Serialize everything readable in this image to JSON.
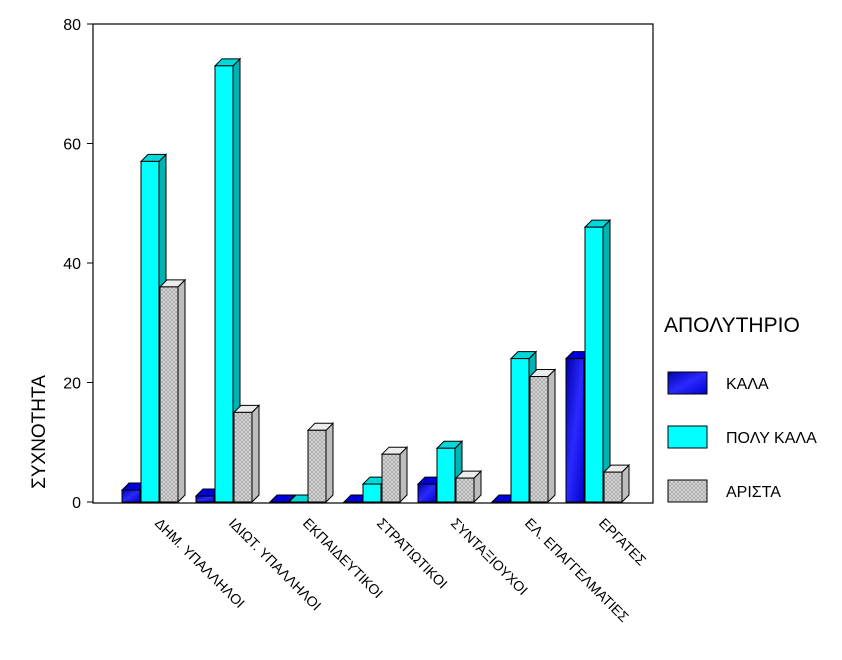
{
  "chart_data": {
    "type": "bar",
    "title": "",
    "xlabel": "",
    "ylabel": "ΣΥΧΝΟΤΗΤΑ",
    "ylim": [
      0,
      80
    ],
    "yticks": [
      0,
      20,
      40,
      60,
      80
    ],
    "grid": false,
    "three_d": true,
    "legend": {
      "title": "ΑΠΟΛΥΤΗΡΙΟ",
      "position": "right"
    },
    "categories": [
      "ΔΗΜ. ΥΠΑΛΛΗΛΟΙ",
      "ΙΔΙΩΤ. ΥΠΑΛΛΗΛΟΙ",
      "ΕΚΠΑΙΔΕΥΤΙΚΟΙ",
      "ΣΤΡΑΤΙΩΤΙΚΟΙ",
      "ΣΥΝΤΑΞΙΟΥΧΟΙ",
      "ΕΛ. ΕΠΑΓΓΕΛΜΑΤΙΕΣ",
      "ΕΡΓΑΤΕΣ"
    ],
    "series": [
      {
        "name": "ΚΑΛΑ",
        "values": [
          2,
          1,
          0,
          0,
          3,
          0,
          24
        ],
        "color": "#0000ff",
        "pattern": "solid"
      },
      {
        "name": "ΠΟΛΥ ΚΑΛΑ",
        "values": [
          57,
          73,
          0,
          3,
          9,
          24,
          46
        ],
        "color": "#00ffff",
        "pattern": "solid"
      },
      {
        "name": "ΑΡΙΣΤΑ",
        "values": [
          36,
          15,
          12,
          8,
          4,
          21,
          5
        ],
        "color": "#c8c8c8",
        "pattern": "crosshatch"
      }
    ]
  }
}
